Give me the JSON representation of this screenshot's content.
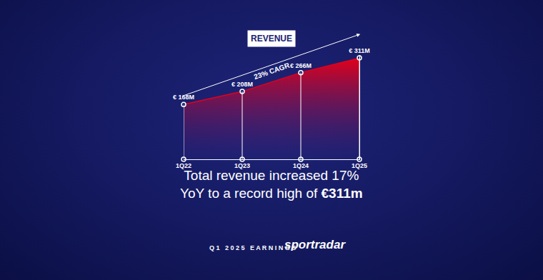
{
  "chart_data": {
    "type": "area",
    "title": "REVENUE",
    "categories": [
      "1Q22",
      "1Q23",
      "1Q24",
      "1Q25"
    ],
    "values": [
      168,
      208,
      266,
      311
    ],
    "value_labels": [
      "€ 168M",
      "€ 208M",
      "€ 266M",
      "€ 311M"
    ],
    "data_labels": true,
    "color": "#e3001b",
    "ylim": [
      0,
      320
    ],
    "tick_labels": "x",
    "grid": false,
    "annotations": [
      "23% CAGR"
    ]
  },
  "caption": {
    "lines": [
      "Total revenue increased 17%",
      "YoY to a record high of €311m"
    ],
    "highlight": "€311m"
  },
  "footer": {
    "left": "Q1 2025 EARNINGS",
    "brand": "sportradar"
  }
}
